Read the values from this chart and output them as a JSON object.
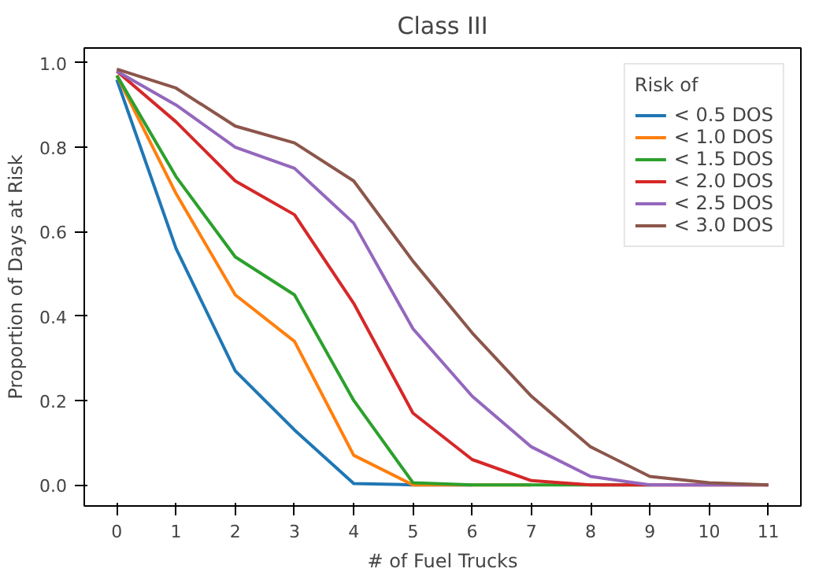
{
  "chart_data": {
    "type": "line",
    "title": "Class III",
    "xlabel": "# of Fuel Trucks",
    "ylabel": "Proportion of Days at Risk",
    "legend_title": "Risk of",
    "legend": "top right",
    "grid": false,
    "x": [
      0,
      1,
      2,
      3,
      4,
      5,
      6,
      7,
      8,
      9,
      10,
      11
    ],
    "xlim": [
      -0.55,
      11.55
    ],
    "xticks": [
      0,
      1,
      2,
      3,
      4,
      5,
      6,
      7,
      8,
      9,
      10,
      11
    ],
    "ylim": [
      -0.05,
      1.035
    ],
    "yticks": [
      {
        "value": 0,
        "label": "0.0"
      },
      0.2,
      0.4,
      0.6,
      0.8,
      {
        "value": 1,
        "label": "1.0"
      }
    ],
    "series": [
      {
        "name": "< 0.5 DOS",
        "color": "#1f77b4",
        "values": [
          0.96,
          0.56,
          0.27,
          0.13,
          0.003,
          0,
          0,
          null,
          null,
          null,
          null,
          null
        ]
      },
      {
        "name": "< 1.0 DOS",
        "color": "#ff7f0e",
        "values": [
          0.97,
          0.69,
          0.45,
          0.34,
          0.07,
          0,
          0,
          0,
          null,
          null,
          null,
          null
        ]
      },
      {
        "name": "< 1.5 DOS",
        "color": "#2ca02c",
        "values": [
          0.97,
          0.73,
          0.54,
          0.45,
          0.2,
          0.005,
          0,
          0,
          0,
          0,
          null,
          null
        ]
      },
      {
        "name": "< 2.0 DOS",
        "color": "#d62728",
        "values": [
          0.98,
          0.86,
          0.72,
          0.64,
          0.43,
          0.17,
          0.06,
          0.01,
          0,
          0,
          0,
          0
        ]
      },
      {
        "name": "< 2.5 DOS",
        "color": "#9467bd",
        "values": [
          0.98,
          0.9,
          0.8,
          0.75,
          0.62,
          0.37,
          0.21,
          0.09,
          0.02,
          0,
          0,
          0
        ]
      },
      {
        "name": "< 3.0 DOS",
        "color": "#8c564b",
        "values": [
          0.985,
          0.94,
          0.85,
          0.81,
          0.72,
          0.53,
          0.36,
          0.21,
          0.09,
          0.02,
          0.005,
          0
        ]
      }
    ]
  }
}
